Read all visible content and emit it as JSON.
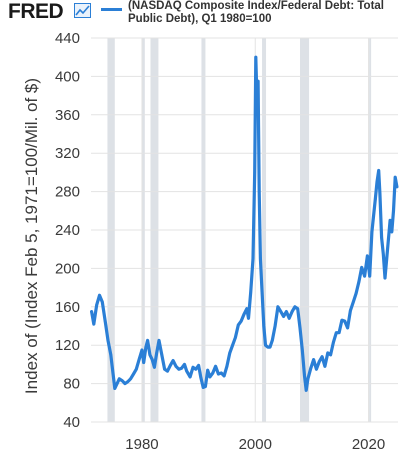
{
  "header": {
    "logo_text": "FRED",
    "logo_icon": "chart-line-icon",
    "legend_label": "(NASDAQ Composite Index/Federal Debt: Total Public Debt), Q1 1980=100",
    "series_color": "#2b7fd6"
  },
  "chart_data": {
    "type": "line",
    "title": "",
    "xlabel": "",
    "ylabel": "Index of (Index Feb 5, 1971=100/Mil. of $)",
    "ylim": [
      40,
      440
    ],
    "xlim": [
      1971.0,
      2025.2
    ],
    "y_ticks": [
      40,
      80,
      120,
      160,
      200,
      240,
      280,
      320,
      360,
      400,
      440
    ],
    "x_ticks": [
      1980,
      2000,
      2020
    ],
    "grid": true,
    "recessions": [
      [
        1973.9,
        1975.2
      ],
      [
        1980.0,
        1980.5
      ],
      [
        1981.5,
        1982.9
      ],
      [
        1990.5,
        1991.2
      ],
      [
        2001.2,
        2001.9
      ],
      [
        2007.9,
        2009.5
      ],
      [
        2020.1,
        2020.4
      ]
    ],
    "series": [
      {
        "name": "",
        "color": "#2b7fd6",
        "x": [
          1971.1,
          1971.5,
          1972.0,
          1972.5,
          1973.0,
          1973.5,
          1974.0,
          1974.5,
          1974.8,
          1975.2,
          1975.6,
          1976.0,
          1976.5,
          1977.0,
          1977.5,
          1978.0,
          1978.5,
          1979.0,
          1979.5,
          1980.0,
          1980.3,
          1980.7,
          1981.0,
          1981.4,
          1981.8,
          1982.2,
          1982.6,
          1983.0,
          1983.5,
          1984.0,
          1984.5,
          1985.0,
          1985.5,
          1986.0,
          1986.5,
          1987.0,
          1987.5,
          1987.9,
          1988.5,
          1989.0,
          1989.5,
          1990.0,
          1990.4,
          1990.8,
          1991.2,
          1991.6,
          1992.0,
          1992.5,
          1993.0,
          1993.5,
          1994.0,
          1994.5,
          1995.0,
          1995.5,
          1996.0,
          1996.5,
          1997.0,
          1997.5,
          1998.0,
          1998.5,
          1998.8,
          1999.2,
          1999.6,
          1999.9,
          2000.1,
          2000.3,
          2000.5,
          2000.7,
          2000.9,
          2001.2,
          2001.5,
          2001.8,
          2002.2,
          2002.6,
          2003.0,
          2003.5,
          2004.0,
          2004.5,
          2005.0,
          2005.5,
          2006.0,
          2006.5,
          2007.0,
          2007.5,
          2007.9,
          2008.3,
          2008.7,
          2009.0,
          2009.3,
          2009.8,
          2010.3,
          2010.8,
          2011.3,
          2011.8,
          2012.3,
          2012.8,
          2013.3,
          2013.8,
          2014.3,
          2014.8,
          2015.3,
          2015.8,
          2016.3,
          2016.8,
          2017.3,
          2017.8,
          2018.3,
          2018.8,
          2019.3,
          2019.8,
          2020.2,
          2020.6,
          2020.9,
          2021.2,
          2021.5,
          2021.8,
          2022.0,
          2022.3,
          2022.6,
          2022.9,
          2023.2,
          2023.5,
          2023.8,
          2024.1,
          2024.4,
          2024.7,
          2025.0
        ],
        "y": [
          155,
          142,
          162,
          172,
          165,
          145,
          125,
          110,
          95,
          75,
          80,
          85,
          83,
          80,
          82,
          85,
          90,
          95,
          105,
          115,
          102,
          118,
          125,
          110,
          105,
          97,
          112,
          125,
          110,
          95,
          93,
          99,
          104,
          98,
          95,
          96,
          100,
          93,
          87,
          97,
          95,
          99,
          86,
          76,
          77,
          94,
          87,
          91,
          98,
          90,
          91,
          88,
          98,
          112,
          120,
          128,
          141,
          145,
          152,
          158,
          148,
          175,
          210,
          300,
          420,
          375,
          395,
          280,
          210,
          175,
          140,
          120,
          118,
          118,
          125,
          140,
          160,
          155,
          150,
          155,
          148,
          155,
          160,
          158,
          138,
          115,
          88,
          73,
          85,
          96,
          105,
          95,
          103,
          108,
          98,
          112,
          110,
          123,
          133,
          133,
          146,
          145,
          138,
          156,
          165,
          174,
          186,
          201,
          192,
          213,
          192,
          238,
          255,
          272,
          290,
          302,
          278,
          232,
          215,
          190,
          210,
          230,
          250,
          238,
          260,
          295,
          285
        ]
      }
    ]
  }
}
